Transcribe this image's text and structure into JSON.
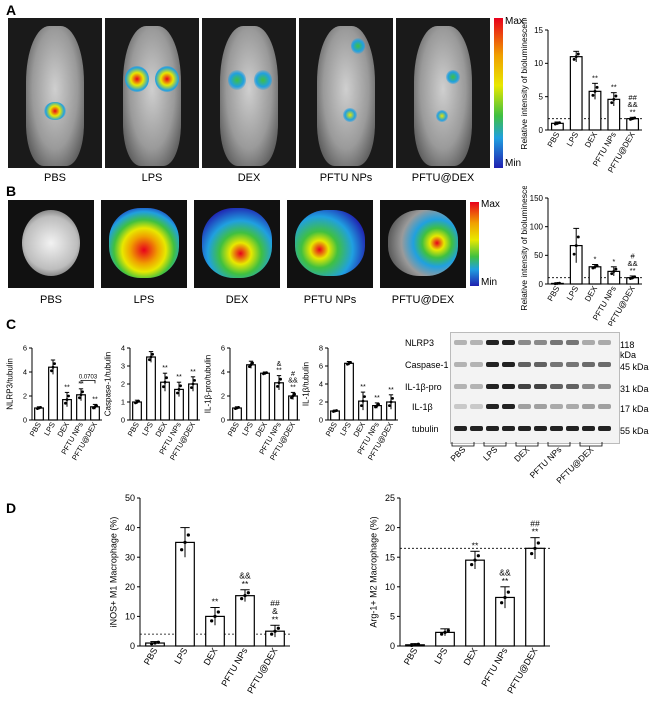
{
  "panels": {
    "A": {
      "label": "A",
      "images": [
        "PBS",
        "LPS",
        "DEX",
        "PFTU NPs",
        "PFTU@DEX"
      ],
      "scale": {
        "max": "Max",
        "min": "Min"
      },
      "chart": {
        "type": "bar",
        "ylabel": "Relative intensity of bioluminescence",
        "categories": [
          "PBS",
          "LPS",
          "DEX",
          "PFTU NPs",
          "PFTU@DEX"
        ],
        "values": [
          1.0,
          11.0,
          5.8,
          4.6,
          1.7
        ],
        "errors": [
          0.2,
          0.8,
          1.2,
          1.0,
          0.2
        ],
        "ylim": [
          0,
          15
        ],
        "yticks": [
          "0",
          "5",
          "10",
          "15"
        ],
        "dashed_ref": 1.7,
        "sig": [
          "",
          "",
          "**",
          "**",
          "**"
        ],
        "sig2": [
          "",
          "",
          "",
          "",
          "&&"
        ],
        "sig3": [
          "",
          "",
          "",
          "",
          "##"
        ]
      }
    },
    "B": {
      "label": "B",
      "images": [
        "PBS",
        "LPS",
        "DEX",
        "PFTU NPs",
        "PFTU@DEX"
      ],
      "scale": {
        "max": "Max",
        "min": "Min"
      },
      "chart": {
        "type": "bar",
        "ylabel": "Relative intensity of bioluminescence",
        "categories": [
          "PBS",
          "LPS",
          "DEX",
          "PFTU NPs",
          "PFTU@DEX"
        ],
        "values": [
          1,
          67,
          30,
          22,
          11
        ],
        "errors": [
          1,
          30,
          4,
          8,
          3
        ],
        "ylim": [
          0,
          150
        ],
        "yticks": [
          "0",
          "50",
          "100",
          "150"
        ],
        "dashed_ref": 11,
        "sig": [
          "",
          "",
          "*",
          "*",
          "**"
        ],
        "sig2": [
          "",
          "",
          "",
          "",
          "&&"
        ],
        "sig3": [
          "",
          "",
          "",
          "",
          "#"
        ]
      }
    },
    "C": {
      "label": "C",
      "charts": [
        {
          "type": "bar",
          "ylabel": "NLRP3/tubulin",
          "categories": [
            "PBS",
            "LPS",
            "DEX",
            "PFTU NPs",
            "PFTU@DEX"
          ],
          "values": [
            1.0,
            4.4,
            1.7,
            2.1,
            1.1
          ],
          "errors": [
            0.1,
            0.6,
            0.6,
            0.5,
            0.2
          ],
          "ylim": [
            0,
            6
          ],
          "yticks": [
            "0",
            "2",
            "4",
            "6"
          ],
          "sig": [
            "",
            "",
            "**",
            "**",
            "**"
          ],
          "sig2": [
            "",
            "",
            "",
            "",
            ""
          ],
          "bracket": "0.0703"
        },
        {
          "type": "bar",
          "ylabel": "Caspase-1/tubulin",
          "categories": [
            "PBS",
            "LPS",
            "DEX",
            "PFTU NPs",
            "PFTU@DEX"
          ],
          "values": [
            1.0,
            3.5,
            2.1,
            1.7,
            2.0
          ],
          "errors": [
            0.1,
            0.3,
            0.5,
            0.4,
            0.4
          ],
          "ylim": [
            0,
            4
          ],
          "yticks": [
            "0",
            "1",
            "2",
            "3",
            "4"
          ],
          "sig": [
            "",
            "",
            "**",
            "**",
            "**"
          ],
          "sig2": [
            "",
            "",
            "",
            "",
            ""
          ]
        },
        {
          "type": "bar",
          "ylabel": "IL-1β-pro/tubulin",
          "categories": [
            "PBS",
            "LPS",
            "DEX",
            "PFTU NPs",
            "PFTU@DEX"
          ],
          "values": [
            1.0,
            4.6,
            3.9,
            3.1,
            2.0
          ],
          "errors": [
            0.1,
            0.3,
            0.1,
            0.6,
            0.3
          ],
          "ylim": [
            0,
            6
          ],
          "yticks": [
            "0",
            "2",
            "4",
            "6"
          ],
          "sig": [
            "",
            "",
            "",
            "**",
            "**"
          ],
          "sig2": [
            "",
            "",
            "",
            "&",
            "&&"
          ],
          "sig3": [
            "",
            "",
            "",
            "",
            "#"
          ]
        },
        {
          "type": "bar",
          "ylabel": "IL-1β/tubulin",
          "categories": [
            "PBS",
            "LPS",
            "DEX",
            "PFTU NPs",
            "PFTU@DEX"
          ],
          "values": [
            1.0,
            6.3,
            2.1,
            1.6,
            2.0
          ],
          "errors": [
            0.1,
            0.2,
            1.0,
            0.3,
            0.8
          ],
          "ylim": [
            0,
            8
          ],
          "yticks": [
            "0",
            "2",
            "4",
            "6",
            "8"
          ],
          "sig": [
            "",
            "",
            "**",
            "**",
            "**"
          ],
          "sig2": [
            "",
            "",
            "",
            "",
            ""
          ]
        }
      ],
      "blot": {
        "rows": [
          "NLRP3",
          "Caspase-1",
          "IL-1β-pro",
          "IL-1β",
          "tubulin"
        ],
        "sizes": [
          "118 kDa",
          "45 kDa",
          "31 kDa",
          "17 kDa",
          "55 kDa"
        ],
        "lanes": [
          "PBS",
          "LPS",
          "DEX",
          "PFTU NPs",
          "PFTU@DEX"
        ]
      }
    },
    "D": {
      "label": "D",
      "charts": [
        {
          "type": "bar",
          "ylabel": "iNOS+ M1 Macrophage (%)",
          "categories": [
            "PBS",
            "LPS",
            "DEX",
            "PFTU NPs",
            "PFTU@DEX"
          ],
          "values": [
            1.0,
            35,
            10,
            17,
            5
          ],
          "errors": [
            0.5,
            5,
            3,
            2,
            2
          ],
          "ylim": [
            0,
            50
          ],
          "yticks": [
            "0",
            "10",
            "20",
            "30",
            "40",
            "50"
          ],
          "dashed_ref": 4,
          "sig": [
            "",
            "",
            "**",
            "**",
            "**"
          ],
          "sig2": [
            "",
            "",
            "",
            "&&",
            "&"
          ],
          "sig3": [
            "",
            "",
            "",
            "",
            "##"
          ]
        },
        {
          "type": "bar",
          "ylabel": "Arg-1+ M2  Macrophage (%)",
          "categories": [
            "PBS",
            "LPS",
            "DEX",
            "PFTU NPs",
            "PFTU@DEX"
          ],
          "values": [
            0.2,
            2.3,
            14.5,
            8.2,
            16.5
          ],
          "errors": [
            0.2,
            0.6,
            1.5,
            1.8,
            1.8
          ],
          "ylim": [
            0,
            25
          ],
          "yticks": [
            "0",
            "5",
            "10",
            "15",
            "20",
            "25"
          ],
          "dashed_ref": 16.5,
          "sig": [
            "",
            "",
            "**",
            "**",
            "**"
          ],
          "sig2": [
            "",
            "",
            "",
            "&&",
            ""
          ],
          "sig3": [
            "",
            "",
            "",
            "",
            "##"
          ]
        }
      ]
    }
  },
  "colors": {
    "bar_fill": "#ffffff",
    "bar_stroke": "#000000",
    "text": "#000000"
  }
}
